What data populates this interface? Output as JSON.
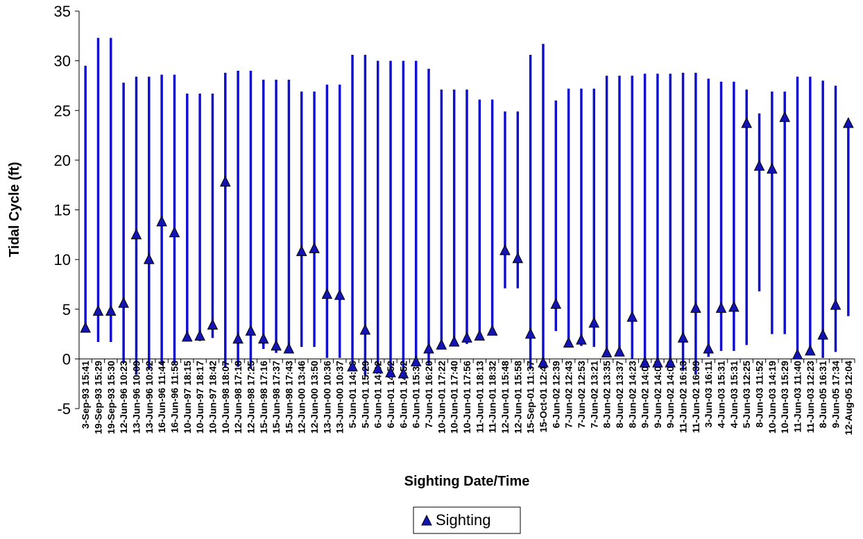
{
  "chart_data": {
    "type": "scatter",
    "title": "",
    "xlabel": "Sighting Date/Time",
    "ylabel": "Tidal Cycle (ft)",
    "ylim": [
      -5,
      35
    ],
    "yticks": [
      "35",
      "30",
      "25",
      "20",
      "15",
      "10",
      "5",
      "0",
      "-5"
    ],
    "grid": false,
    "legend_position": "bottom-center",
    "colors": {
      "range_line": "#1010CC",
      "marker": "#1414B4",
      "marker_edge": "#000000",
      "axis": "#000000"
    },
    "categories": [
      "3-Sep-93 15:41",
      "19-Sep-93 15:29",
      "19-Sep-93 15:30",
      "12-Jun-96 10:23",
      "13-Jun-96 10:09",
      "13-Jun-96 10:32",
      "16-Jun-96 11:44",
      "16-Jun-96 11:58",
      "10-Jun-97 18:15",
      "10-Jun-97 18:17",
      "10-Jun-97 18:42",
      "10-Jun-98 18:07",
      "12-Jun-98 17:18",
      "12-Jun-98 17:25",
      "15-Jun-98 17:16",
      "15-Jun-98 17:37",
      "15-Jun-98 17:43",
      "12-Jun-00 13:46",
      "12-Jun-00 13:50",
      "13-Jun-00 10:36",
      "13-Jun-00 10:37",
      "5-Jun-01 14:46",
      "5-Jun-01 15:29",
      "6-Jun-01 14:32",
      "6-Jun-01 14:52",
      "6-Jun-01 14:52",
      "6-Jun-01 15:33",
      "7-Jun-01 16:20",
      "10-Jun-01 17:22",
      "10-Jun-01 17:40",
      "10-Jun-01 17:56",
      "11-Jun-01 18:13",
      "11-Jun-01 18:32",
      "12-Jun-01 15:48",
      "12-Jun-01 15:58",
      "15-Sep-01 11:37",
      "15-Oct-01 12:46",
      "6-Jun-02 12:39",
      "7-Jun-02 12:43",
      "7-Jun-02 12:53",
      "7-Jun-02 13:21",
      "8-Jun-02 13:35",
      "8-Jun-02 13:37",
      "8-Jun-02 14:23",
      "9-Jun-02 14:06",
      "9-Jun-02 14:07",
      "9-Jun-02 14:08",
      "11-Jun-02 16:13",
      "11-Jun-02 16:39",
      "3-Jun-03 16:11",
      "4-Jun-03 15:31",
      "4-Jun-03 15:31",
      "5-Jun-03 12:25",
      "8-Jun-03 11:52",
      "10-Jun-03 14:19",
      "10-Jun-03 15:29",
      "11-Jun-03 11:40",
      "11-Jun-03 12:23",
      "8-Jun-05 16:31",
      "9-Jun-05 17:34",
      "12-Aug-05 12:04"
    ],
    "series": [
      {
        "name": "Sighting",
        "values": [
          3.1,
          4.8,
          4.8,
          5.6,
          12.5,
          10.0,
          13.8,
          12.7,
          2.2,
          2.3,
          3.4,
          17.8,
          2.0,
          2.8,
          2.0,
          1.3,
          1.0,
          10.8,
          11.1,
          6.5,
          6.4,
          -0.8,
          2.9,
          -1.0,
          -1.4,
          -1.5,
          -0.3,
          1.0,
          1.4,
          1.7,
          2.1,
          2.3,
          2.8,
          10.9,
          10.1,
          2.5,
          -0.4,
          5.5,
          1.6,
          1.9,
          3.6,
          0.6,
          0.7,
          4.2,
          -0.4,
          -0.4,
          -0.4,
          2.1,
          5.1,
          1.0,
          5.1,
          5.2,
          23.7,
          19.4,
          19.1,
          24.3,
          0.4,
          0.8,
          2.4,
          5.4,
          23.7
        ]
      }
    ],
    "tidal_range": {
      "low": [
        3.1,
        1.7,
        1.7,
        -0.4,
        -1.6,
        -1.1,
        -0.6,
        -0.5,
        1.8,
        1.8,
        2.1,
        -0.9,
        -0.8,
        -1.0,
        1.0,
        0.6,
        0.6,
        1.2,
        1.2,
        0.1,
        0.1,
        -1.0,
        -1.7,
        -1.4,
        -1.5,
        -1.5,
        -0.5,
        -0.6,
        1.0,
        1.3,
        1.5,
        1.9,
        2.5,
        7.1,
        7.1,
        -1.0,
        -0.7,
        2.8,
        1.6,
        1.3,
        1.2,
        0.3,
        0.4,
        0.0,
        -0.4,
        -0.4,
        -0.4,
        -1.2,
        -1.6,
        0.2,
        0.8,
        0.8,
        1.4,
        6.8,
        2.5,
        2.5,
        0.4,
        0.6,
        0.1,
        0.7,
        4.3
      ],
      "high": [
        29.5,
        32.3,
        32.3,
        27.8,
        28.4,
        28.4,
        28.6,
        28.6,
        26.7,
        26.7,
        26.7,
        28.8,
        29.0,
        29.0,
        28.1,
        28.1,
        28.1,
        26.9,
        26.9,
        27.6,
        27.6,
        30.6,
        30.6,
        30.0,
        30.0,
        30.0,
        30.0,
        29.2,
        27.1,
        27.1,
        27.1,
        26.1,
        26.1,
        24.9,
        24.9,
        30.6,
        31.7,
        26.0,
        27.2,
        27.2,
        27.2,
        28.5,
        28.5,
        28.5,
        28.7,
        28.7,
        28.7,
        28.8,
        28.8,
        28.2,
        27.9,
        27.9,
        27.1,
        24.7,
        26.9,
        26.9,
        28.4,
        28.4,
        28.0,
        27.5,
        23.8
      ]
    }
  }
}
